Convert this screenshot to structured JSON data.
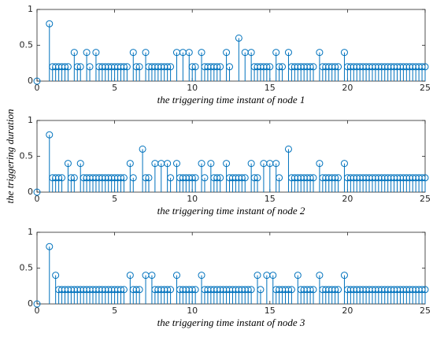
{
  "chart_data": [
    {
      "type": "stem",
      "xlabel": "the triggering time instant of node 1",
      "color": "#0072bd",
      "xlim": [
        0,
        25
      ],
      "ylim": [
        0,
        1
      ],
      "xticks": [
        0,
        5,
        10,
        15,
        20,
        25
      ],
      "yticks": [
        0,
        0.5,
        1
      ],
      "x": [
        0,
        0.8,
        1,
        1.2,
        1.4,
        1.6,
        1.8,
        2,
        2.4,
        2.6,
        2.8,
        3.2,
        3.4,
        3.8,
        4,
        4.2,
        4.4,
        4.6,
        4.8,
        5,
        5.2,
        5.4,
        5.6,
        5.8,
        6.2,
        6.4,
        6.6,
        7,
        7.2,
        7.4,
        7.6,
        7.8,
        8,
        8.2,
        8.4,
        8.6,
        9,
        9.4,
        9.8,
        10,
        10.2,
        10.6,
        10.8,
        11,
        11.2,
        11.4,
        11.6,
        11.8,
        12.2,
        12.4,
        13,
        13.4,
        13.8,
        14,
        14.2,
        14.4,
        14.6,
        14.8,
        15,
        15.4,
        15.6,
        15.8,
        16.2,
        16.4,
        16.6,
        16.8,
        17,
        17.2,
        17.4,
        17.6,
        17.8,
        18.2,
        18.4,
        18.6,
        18.8,
        19,
        19.2,
        19.4,
        19.8,
        20,
        20.2,
        20.4,
        20.6,
        20.8,
        21,
        21.2,
        21.4,
        21.6,
        21.8,
        22,
        22.2,
        22.4,
        22.6,
        22.8,
        23,
        23.2,
        23.4,
        23.6,
        23.8,
        24,
        24.2,
        24.4,
        24.6,
        24.8,
        25
      ],
      "values": [
        0,
        0.8,
        0.2,
        0.2,
        0.2,
        0.2,
        0.2,
        0.2,
        0.4,
        0.2,
        0.2,
        0.4,
        0.2,
        0.4,
        0.2,
        0.2,
        0.2,
        0.2,
        0.2,
        0.2,
        0.2,
        0.2,
        0.2,
        0.2,
        0.4,
        0.2,
        0.2,
        0.4,
        0.2,
        0.2,
        0.2,
        0.2,
        0.2,
        0.2,
        0.2,
        0.2,
        0.4,
        0.4,
        0.4,
        0.2,
        0.2,
        0.4,
        0.2,
        0.2,
        0.2,
        0.2,
        0.2,
        0.2,
        0.4,
        0.2,
        0.6,
        0.4,
        0.4,
        0.2,
        0.2,
        0.2,
        0.2,
        0.2,
        0.2,
        0.4,
        0.2,
        0.2,
        0.4,
        0.2,
        0.2,
        0.2,
        0.2,
        0.2,
        0.2,
        0.2,
        0.2,
        0.4,
        0.2,
        0.2,
        0.2,
        0.2,
        0.2,
        0.2,
        0.4,
        0.2,
        0.2,
        0.2,
        0.2,
        0.2,
        0.2,
        0.2,
        0.2,
        0.2,
        0.2,
        0.2,
        0.2,
        0.2,
        0.2,
        0.2,
        0.2,
        0.2,
        0.2,
        0.2,
        0.2,
        0.2,
        0.2,
        0.2,
        0.2,
        0.2,
        0.2
      ]
    },
    {
      "type": "stem",
      "xlabel": "the triggering time instant of node 2",
      "ylabel": "the triggering duration",
      "color": "#0072bd",
      "xlim": [
        0,
        25
      ],
      "ylim": [
        0,
        1
      ],
      "xticks": [
        0,
        5,
        10,
        15,
        20,
        25
      ],
      "yticks": [
        0,
        0.5,
        1
      ],
      "x": [
        0,
        0.8,
        1,
        1.2,
        1.4,
        1.6,
        2,
        2.2,
        2.4,
        2.8,
        3,
        3.2,
        3.4,
        3.6,
        3.8,
        4,
        4.2,
        4.4,
        4.6,
        4.8,
        5,
        5.2,
        5.4,
        5.6,
        6,
        6.2,
        6.8,
        7,
        7.2,
        7.6,
        8,
        8.4,
        8.6,
        9,
        9.2,
        9.4,
        9.6,
        9.8,
        10,
        10.2,
        10.6,
        10.8,
        11.2,
        11.4,
        11.6,
        11.8,
        12.2,
        12.4,
        12.6,
        12.8,
        13,
        13.2,
        13.4,
        13.8,
        14,
        14.2,
        14.6,
        15,
        15.4,
        15.6,
        16.2,
        16.4,
        16.6,
        16.8,
        17,
        17.2,
        17.4,
        17.6,
        17.8,
        18.2,
        18.4,
        18.6,
        18.8,
        19,
        19.2,
        19.4,
        19.8,
        20,
        20.2,
        20.4,
        20.6,
        20.8,
        21,
        21.2,
        21.4,
        21.6,
        21.8,
        22,
        22.2,
        22.4,
        22.6,
        22.8,
        23,
        23.2,
        23.4,
        23.6,
        23.8,
        24,
        24.2,
        24.4,
        24.6,
        24.8,
        25
      ],
      "values": [
        0,
        0.8,
        0.2,
        0.2,
        0.2,
        0.2,
        0.4,
        0.2,
        0.2,
        0.4,
        0.2,
        0.2,
        0.2,
        0.2,
        0.2,
        0.2,
        0.2,
        0.2,
        0.2,
        0.2,
        0.2,
        0.2,
        0.2,
        0.2,
        0.4,
        0.2,
        0.6,
        0.2,
        0.2,
        0.4,
        0.4,
        0.4,
        0.2,
        0.4,
        0.2,
        0.2,
        0.2,
        0.2,
        0.2,
        0.2,
        0.4,
        0.2,
        0.4,
        0.2,
        0.2,
        0.2,
        0.4,
        0.2,
        0.2,
        0.2,
        0.2,
        0.2,
        0.2,
        0.4,
        0.2,
        0.2,
        0.4,
        0.4,
        0.4,
        0.2,
        0.6,
        0.2,
        0.2,
        0.2,
        0.2,
        0.2,
        0.2,
        0.2,
        0.2,
        0.4,
        0.2,
        0.2,
        0.2,
        0.2,
        0.2,
        0.2,
        0.4,
        0.2,
        0.2,
        0.2,
        0.2,
        0.2,
        0.2,
        0.2,
        0.2,
        0.2,
        0.2,
        0.2,
        0.2,
        0.2,
        0.2,
        0.2,
        0.2,
        0.2,
        0.2,
        0.2,
        0.2,
        0.2,
        0.2,
        0.2,
        0.2,
        0.2,
        0.2
      ]
    },
    {
      "type": "stem",
      "xlabel": "the triggering time instant of node 3",
      "color": "#0072bd",
      "xlim": [
        0,
        25
      ],
      "ylim": [
        0,
        1
      ],
      "xticks": [
        0,
        5,
        10,
        15,
        20,
        25
      ],
      "yticks": [
        0,
        0.5,
        1
      ],
      "x": [
        0,
        0.8,
        1.2,
        1.4,
        1.6,
        1.8,
        2,
        2.2,
        2.4,
        2.6,
        2.8,
        3,
        3.2,
        3.4,
        3.6,
        3.8,
        4,
        4.2,
        4.4,
        4.6,
        4.8,
        5,
        5.2,
        5.4,
        5.6,
        6,
        6.2,
        6.4,
        6.6,
        7,
        7.4,
        7.6,
        7.8,
        8,
        8.2,
        8.4,
        8.6,
        9,
        9.2,
        9.4,
        9.6,
        9.8,
        10,
        10.2,
        10.6,
        10.8,
        11,
        11.2,
        11.4,
        11.6,
        11.8,
        12,
        12.2,
        12.4,
        12.6,
        12.8,
        13,
        13.2,
        13.4,
        13.6,
        13.8,
        14.2,
        14.4,
        14.8,
        15.2,
        15.4,
        15.6,
        15.8,
        16,
        16.2,
        16.4,
        16.8,
        17,
        17.2,
        17.4,
        17.6,
        17.8,
        18.2,
        18.4,
        18.6,
        18.8,
        19,
        19.2,
        19.4,
        19.8,
        20,
        20.2,
        20.4,
        20.6,
        20.8,
        21,
        21.2,
        21.4,
        21.6,
        21.8,
        22,
        22.2,
        22.4,
        22.6,
        22.8,
        23,
        23.2,
        23.4,
        23.6,
        23.8,
        24,
        24.2,
        24.4,
        24.6,
        24.8,
        25
      ],
      "values": [
        0,
        0.8,
        0.4,
        0.2,
        0.2,
        0.2,
        0.2,
        0.2,
        0.2,
        0.2,
        0.2,
        0.2,
        0.2,
        0.2,
        0.2,
        0.2,
        0.2,
        0.2,
        0.2,
        0.2,
        0.2,
        0.2,
        0.2,
        0.2,
        0.2,
        0.4,
        0.2,
        0.2,
        0.2,
        0.4,
        0.4,
        0.2,
        0.2,
        0.2,
        0.2,
        0.2,
        0.2,
        0.4,
        0.2,
        0.2,
        0.2,
        0.2,
        0.2,
        0.2,
        0.4,
        0.2,
        0.2,
        0.2,
        0.2,
        0.2,
        0.2,
        0.2,
        0.2,
        0.2,
        0.2,
        0.2,
        0.2,
        0.2,
        0.2,
        0.2,
        0.2,
        0.4,
        0.2,
        0.4,
        0.4,
        0.2,
        0.2,
        0.2,
        0.2,
        0.2,
        0.2,
        0.4,
        0.2,
        0.2,
        0.2,
        0.2,
        0.2,
        0.4,
        0.2,
        0.2,
        0.2,
        0.2,
        0.2,
        0.2,
        0.4,
        0.2,
        0.2,
        0.2,
        0.2,
        0.2,
        0.2,
        0.2,
        0.2,
        0.2,
        0.2,
        0.2,
        0.2,
        0.2,
        0.2,
        0.2,
        0.2,
        0.2,
        0.2,
        0.2,
        0.2,
        0.2,
        0.2,
        0.2,
        0.2,
        0.2,
        0.2
      ]
    }
  ]
}
